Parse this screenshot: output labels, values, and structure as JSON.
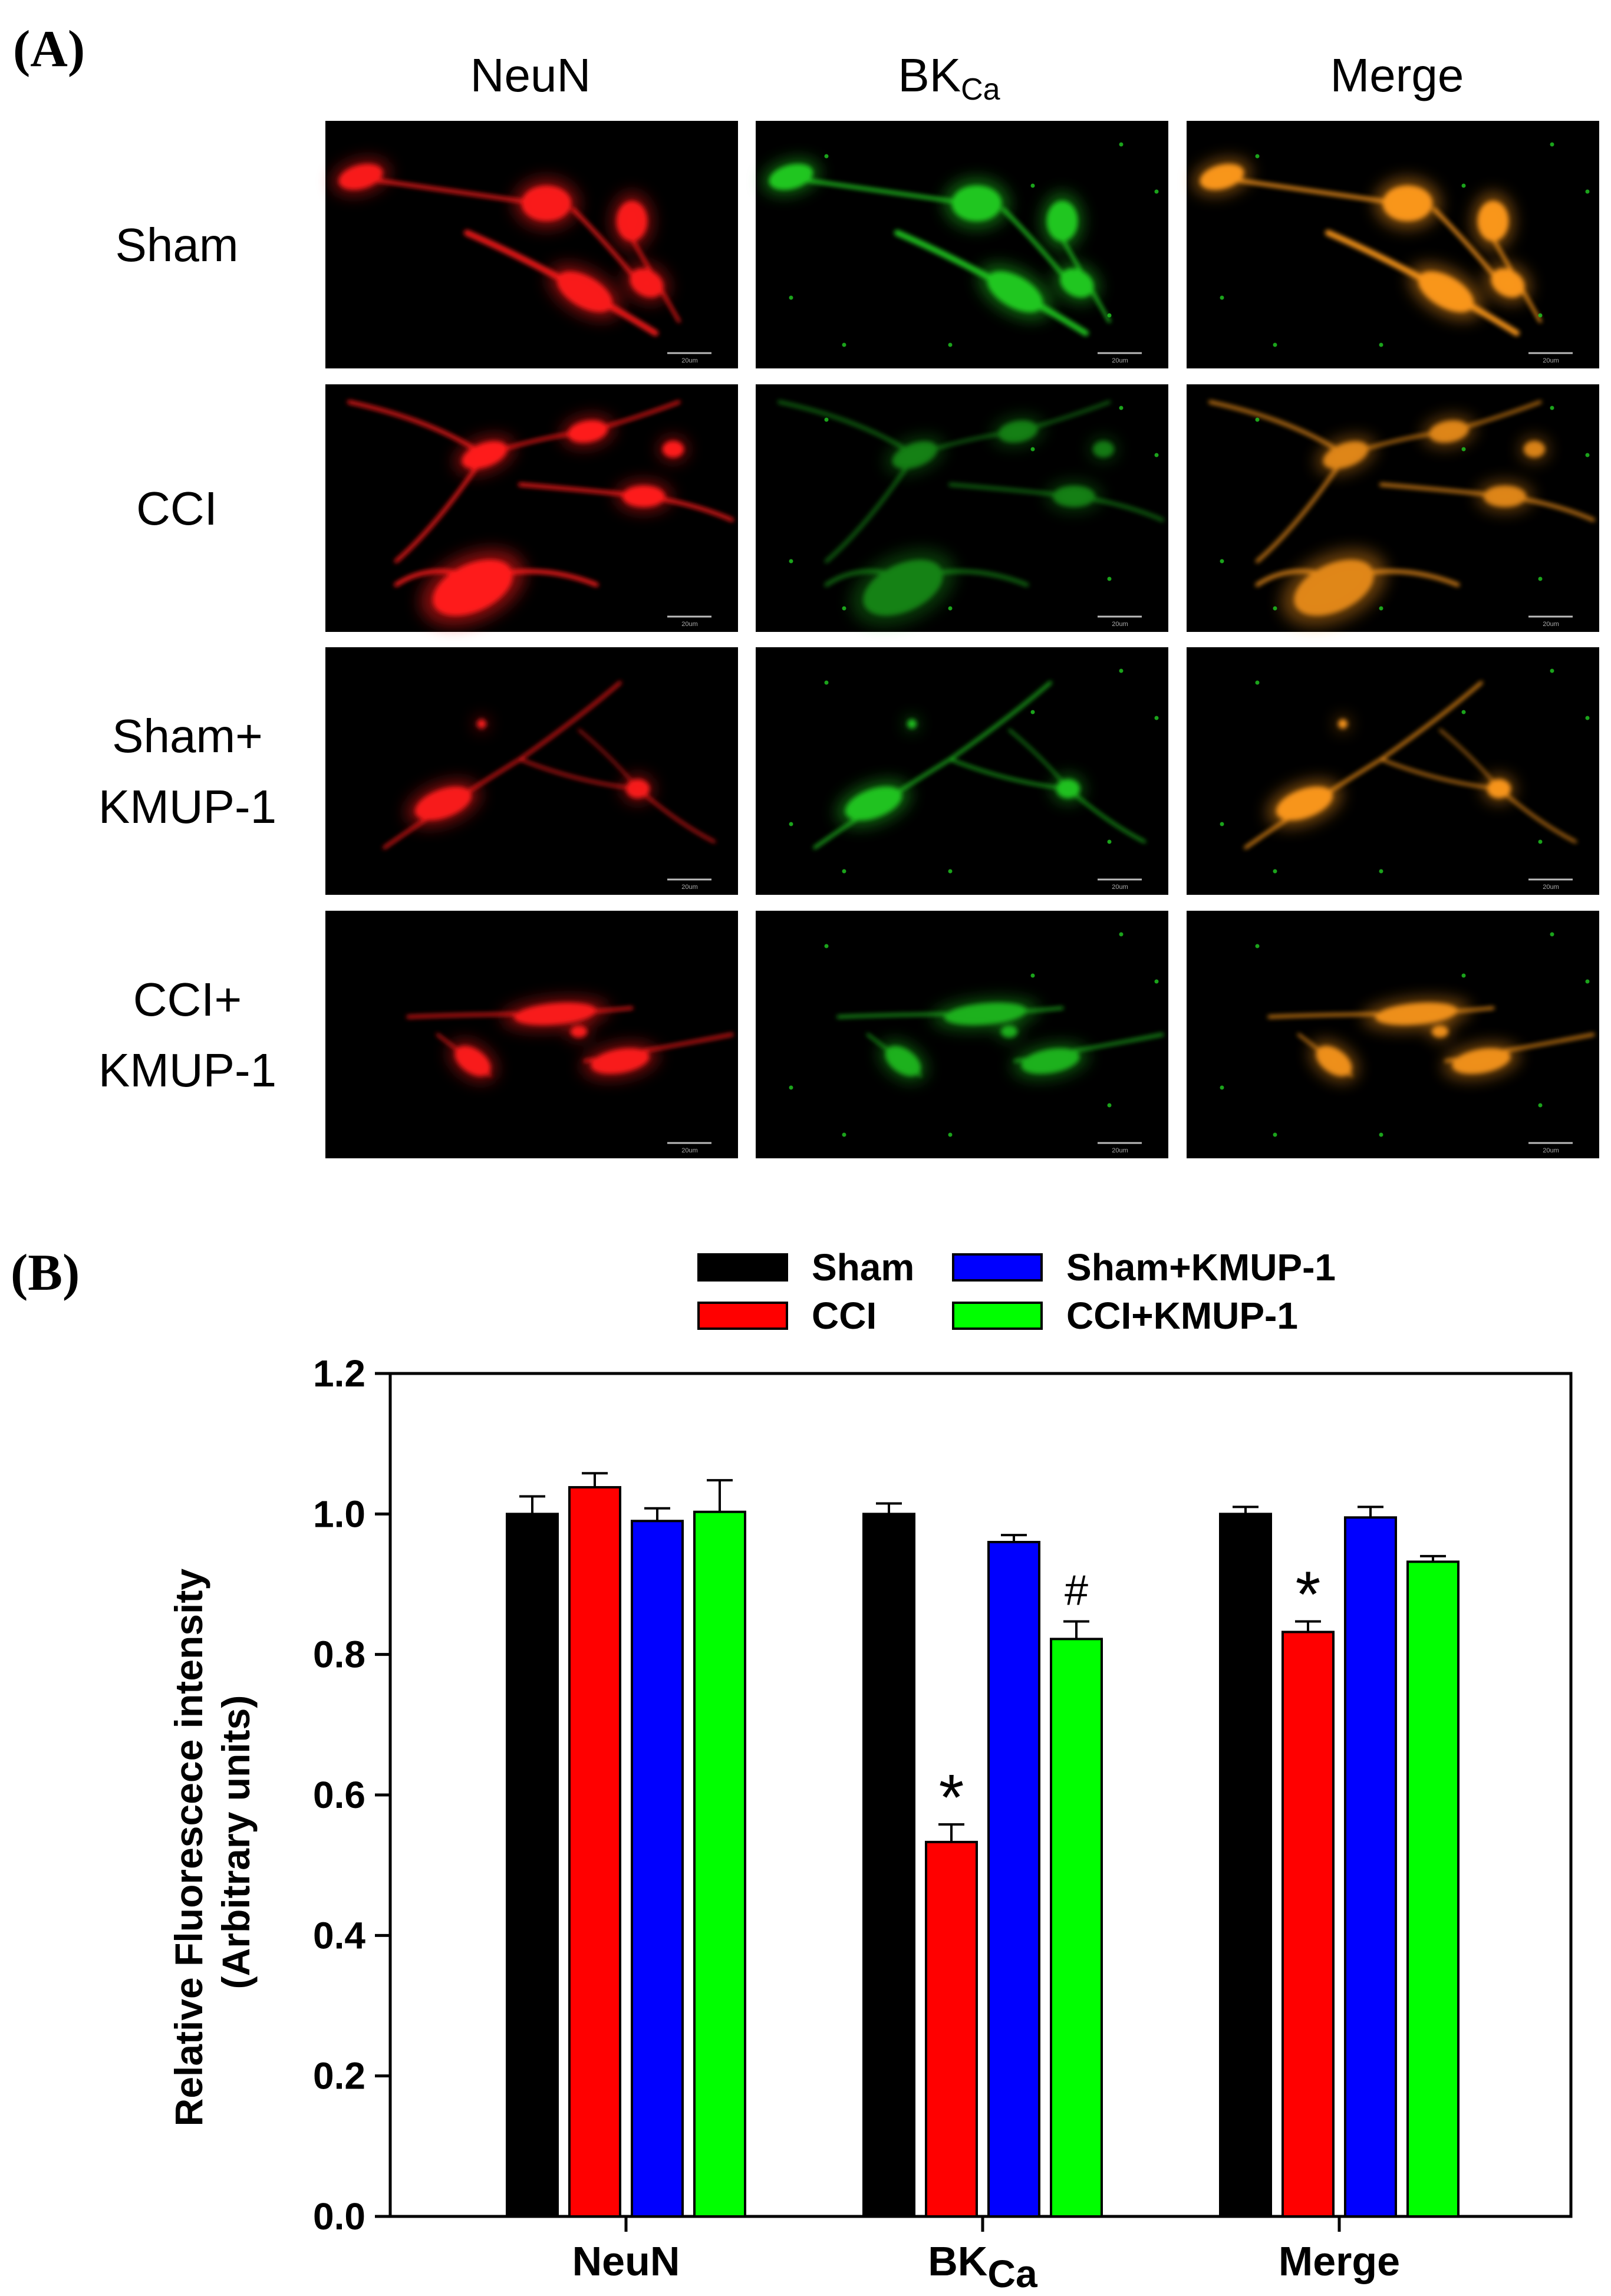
{
  "panel_a": {
    "letter": "(A)",
    "columns": [
      "NeuN",
      "BK",
      "Merge"
    ],
    "column_subscript": {
      "BK": "Ca"
    },
    "rows": [
      {
        "id": "sham",
        "label_lines": [
          "Sham"
        ]
      },
      {
        "id": "cci",
        "label_lines": [
          "CCI"
        ]
      },
      {
        "id": "sham-kmup",
        "label_lines": [
          "Sham+",
          "KMUP-1"
        ]
      },
      {
        "id": "cci-kmup",
        "label_lines": [
          "CCI+",
          "KMUP-1"
        ]
      }
    ],
    "scale_bar_text": "20um",
    "intensity": {
      "NeuN": [
        1.0,
        1.04,
        0.99,
        1.0
      ],
      "BK": [
        1.0,
        0.53,
        0.96,
        0.82
      ],
      "Merge": [
        1.0,
        0.83,
        0.99,
        0.93
      ]
    },
    "colors": {
      "image_bg": "#000000",
      "neun": "#ff1a1a",
      "bk": "#22cc22",
      "merge": "#ff9a1a"
    }
  },
  "chart_data": {
    "type": "bar",
    "panel_letter": "(B)",
    "categories": [
      "NeuN",
      "BK",
      "Merge"
    ],
    "category_subscript": {
      "BK": "Ca"
    },
    "series": [
      {
        "name": "Sham",
        "color": "#000000",
        "values": [
          1.0,
          1.0,
          1.0
        ],
        "errors": [
          0.025,
          0.015,
          0.01
        ]
      },
      {
        "name": "CCI",
        "color": "#ff0000",
        "values": [
          1.038,
          0.533,
          0.832
        ],
        "errors": [
          0.02,
          0.025,
          0.015
        ]
      },
      {
        "name": "Sham+KMUP-1",
        "color": "#0000ff",
        "values": [
          0.99,
          0.96,
          0.995
        ],
        "errors": [
          0.018,
          0.01,
          0.015
        ]
      },
      {
        "name": "CCI+KMUP-1",
        "color": "#00ff00",
        "values": [
          1.003,
          0.822,
          0.932
        ],
        "errors": [
          0.045,
          0.025,
          0.008
        ]
      }
    ],
    "annotations": [
      {
        "category": "BK",
        "series": "CCI",
        "text": "*"
      },
      {
        "category": "BK",
        "series": "CCI+KMUP-1",
        "text": "#"
      },
      {
        "category": "Merge",
        "series": "CCI",
        "text": "*"
      }
    ],
    "ylabel_lines": [
      "Relative Fluorescece intensity",
      "(Arbitrary units)"
    ],
    "ylim": [
      0.0,
      1.2
    ],
    "yticks": [
      "0.0",
      "0.2",
      "0.4",
      "0.6",
      "0.8",
      "1.0",
      "1.2"
    ],
    "xlabel": "",
    "grid": false,
    "legend_position": "top"
  }
}
